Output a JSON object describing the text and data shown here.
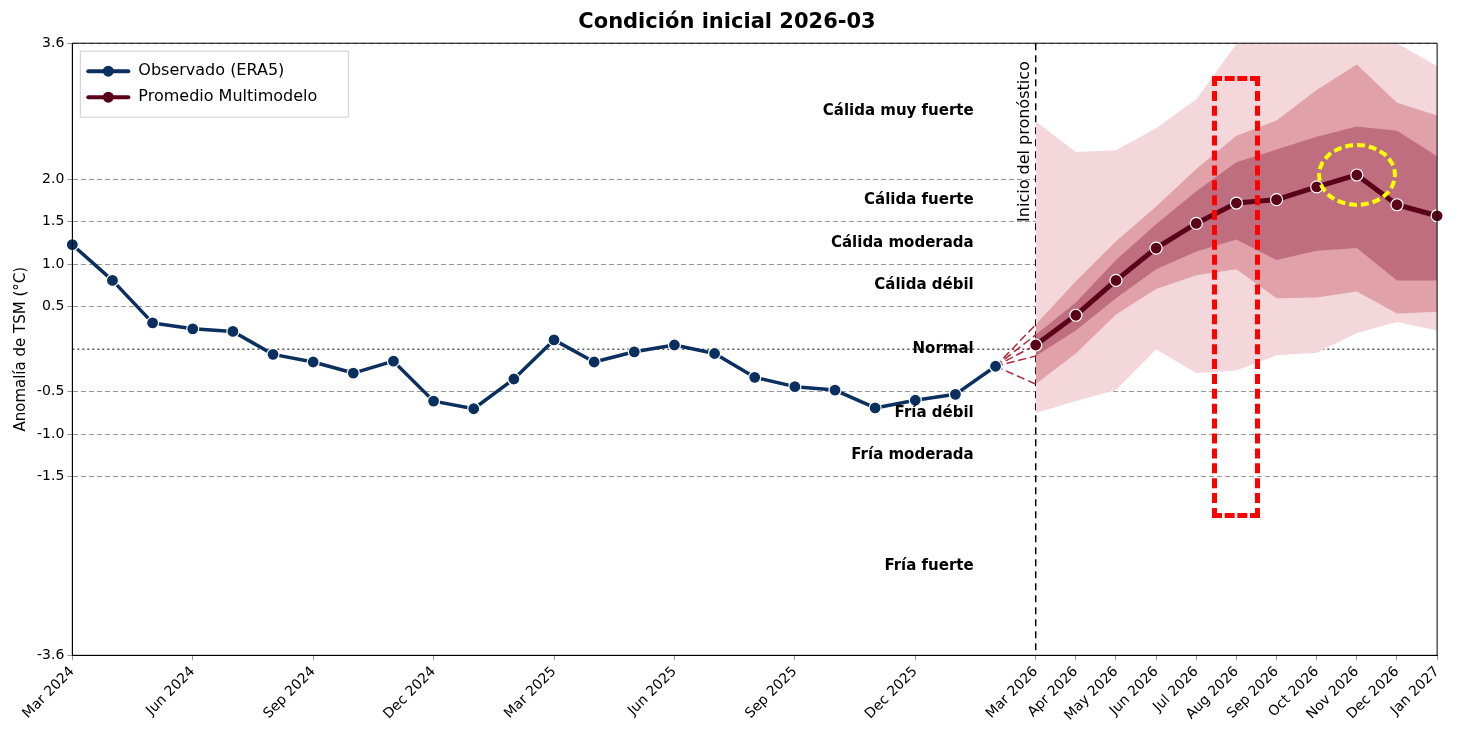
{
  "chart_data": {
    "type": "line",
    "title": "Condición inicial 2026-03",
    "ylabel": "Anomalía de TSM (°C)",
    "categories": [
      "Mar 2024",
      null,
      null,
      "Jun 2024",
      null,
      null,
      "Sep 2024",
      null,
      null,
      "Dec 2024",
      null,
      null,
      "Mar 2025",
      null,
      null,
      "Jun 2025",
      null,
      null,
      "Sep 2025",
      null,
      null,
      "Dec 2025",
      null,
      null,
      "Mar 2026",
      "Apr 2026",
      "May 2026",
      "Jun 2026",
      "Jul 2026",
      "Aug 2026",
      "Sep 2026",
      "Oct 2026",
      "Nov 2026",
      "Dec 2026",
      "Jan 2027"
    ],
    "ylim": [
      -3.6,
      3.6
    ],
    "yticks": [
      -3.6,
      -1.5,
      {
        "value": -1,
        "label": "-1.0"
      },
      -0.5,
      0.5,
      {
        "value": 1,
        "label": "1.0"
      },
      1.5,
      {
        "value": 2,
        "label": "2.0"
      },
      3.6
    ],
    "grid": "y",
    "legend": "top left",
    "marker": "circle",
    "ref_lines": [
      {
        "axis": "y",
        "value": 0,
        "line_style": "dotted",
        "color": "#555555"
      },
      {
        "axis": "x",
        "value": "Mar 2026",
        "label": "Inicio del pronóstico",
        "line_style": "dashed",
        "color": "#000000"
      }
    ],
    "annotations": [
      "Cálida muy fuerte",
      "Cálida fuerte",
      "Cálida moderada",
      "Cálida débil",
      "Normal",
      "Fría débil",
      "Fría moderada",
      "Fría fuerte"
    ],
    "series": [
      {
        "color": "#f3d7db",
        "values": [
          null,
          null,
          null,
          null,
          null,
          null,
          null,
          null,
          null,
          null,
          null,
          null,
          null,
          null,
          null,
          null,
          null,
          null,
          null,
          null,
          null,
          null,
          null,
          null,
          null,
          null,
          null,
          null,
          null,
          null,
          null,
          null,
          null,
          null,
          null
        ],
        "lower": [
          null,
          null,
          null,
          null,
          null,
          null,
          null,
          null,
          null,
          null,
          null,
          null,
          null,
          null,
          null,
          null,
          null,
          null,
          null,
          null,
          null,
          null,
          null,
          null,
          -0.75,
          -0.61,
          -0.48,
          0.0,
          -0.28,
          -0.25,
          -0.07,
          -0.04,
          0.19,
          0.32,
          0.22
        ],
        "upper": [
          null,
          null,
          null,
          null,
          null,
          null,
          null,
          null,
          null,
          null,
          null,
          null,
          null,
          null,
          null,
          null,
          null,
          null,
          null,
          null,
          null,
          null,
          null,
          null,
          2.68,
          2.32,
          2.34,
          2.6,
          2.94,
          3.59,
          3.6,
          3.6,
          3.6,
          3.6,
          3.33
        ]
      },
      {
        "color": "#e0a1a9",
        "values": [
          null,
          null,
          null,
          null,
          null,
          null,
          null,
          null,
          null,
          null,
          null,
          null,
          null,
          null,
          null,
          null,
          null,
          null,
          null,
          null,
          null,
          null,
          null,
          null,
          null,
          null,
          null,
          null,
          null,
          null,
          null,
          null,
          null,
          null,
          null
        ],
        "lower": [
          null,
          null,
          null,
          null,
          null,
          null,
          null,
          null,
          null,
          null,
          null,
          null,
          null,
          null,
          null,
          null,
          null,
          null,
          null,
          null,
          null,
          null,
          null,
          null,
          -0.41,
          -0.05,
          0.41,
          0.71,
          0.87,
          0.94,
          0.6,
          0.61,
          0.68,
          0.42,
          0.44
        ],
        "upper": [
          null,
          null,
          null,
          null,
          null,
          null,
          null,
          null,
          null,
          null,
          null,
          null,
          null,
          null,
          null,
          null,
          null,
          null,
          null,
          null,
          null,
          null,
          null,
          null,
          0.29,
          0.8,
          1.27,
          1.68,
          2.12,
          2.51,
          2.69,
          3.05,
          3.35,
          2.9,
          2.75
        ]
      },
      {
        "color": "#bf6e80",
        "values": [
          null,
          null,
          null,
          null,
          null,
          null,
          null,
          null,
          null,
          null,
          null,
          null,
          null,
          null,
          null,
          null,
          null,
          null,
          null,
          null,
          null,
          null,
          null,
          null,
          null,
          null,
          null,
          null,
          null,
          null,
          null,
          null,
          null,
          null,
          null
        ],
        "lower": [
          null,
          null,
          null,
          null,
          null,
          null,
          null,
          null,
          null,
          null,
          null,
          null,
          null,
          null,
          null,
          null,
          null,
          null,
          null,
          null,
          null,
          null,
          null,
          null,
          -0.08,
          0.22,
          0.6,
          0.94,
          1.15,
          1.29,
          1.05,
          1.16,
          1.19,
          0.81,
          0.81
        ],
        "upper": [
          null,
          null,
          null,
          null,
          null,
          null,
          null,
          null,
          null,
          null,
          null,
          null,
          null,
          null,
          null,
          null,
          null,
          null,
          null,
          null,
          null,
          null,
          null,
          null,
          0.17,
          0.55,
          1.05,
          1.47,
          1.86,
          2.2,
          2.35,
          2.5,
          2.62,
          2.57,
          2.27
        ]
      },
      {
        "color": "#b0283c",
        "marker": "none",
        "line_style": "dashed",
        "values": [
          null,
          null,
          null,
          null,
          null,
          null,
          null,
          null,
          null,
          null,
          null,
          null,
          null,
          null,
          null,
          null,
          null,
          null,
          null,
          null,
          null,
          null,
          null,
          -0.2,
          0.29,
          null,
          null,
          null,
          null,
          null,
          null,
          null,
          null,
          null,
          null
        ]
      },
      {
        "color": "#b0283c",
        "marker": "none",
        "line_style": "dashed",
        "values": [
          null,
          null,
          null,
          null,
          null,
          null,
          null,
          null,
          null,
          null,
          null,
          null,
          null,
          null,
          null,
          null,
          null,
          null,
          null,
          null,
          null,
          null,
          null,
          -0.2,
          0.17,
          null,
          null,
          null,
          null,
          null,
          null,
          null,
          null,
          null,
          null
        ]
      },
      {
        "color": "#b0283c",
        "marker": "none",
        "line_style": "dashed",
        "values": [
          null,
          null,
          null,
          null,
          null,
          null,
          null,
          null,
          null,
          null,
          null,
          null,
          null,
          null,
          null,
          null,
          null,
          null,
          null,
          null,
          null,
          null,
          null,
          -0.2,
          0.05,
          null,
          null,
          null,
          null,
          null,
          null,
          null,
          null,
          null,
          null
        ]
      },
      {
        "color": "#b0283c",
        "marker": "none",
        "line_style": "dashed",
        "values": [
          null,
          null,
          null,
          null,
          null,
          null,
          null,
          null,
          null,
          null,
          null,
          null,
          null,
          null,
          null,
          null,
          null,
          null,
          null,
          null,
          null,
          null,
          null,
          -0.2,
          -0.08,
          null,
          null,
          null,
          null,
          null,
          null,
          null,
          null,
          null,
          null
        ]
      },
      {
        "color": "#b0283c",
        "marker": "none",
        "line_style": "dashed",
        "values": [
          null,
          null,
          null,
          null,
          null,
          null,
          null,
          null,
          null,
          null,
          null,
          null,
          null,
          null,
          null,
          null,
          null,
          null,
          null,
          null,
          null,
          null,
          null,
          -0.2,
          -0.41,
          null,
          null,
          null,
          null,
          null,
          null,
          null,
          null,
          null,
          null
        ]
      },
      {
        "name": "Observado (ERA5)",
        "color": "#0b2f5e",
        "values": [
          1.23,
          0.81,
          0.31,
          0.24,
          0.21,
          -0.06,
          -0.15,
          -0.28,
          -0.14,
          -0.61,
          -0.7,
          -0.35,
          0.11,
          -0.15,
          -0.03,
          0.05,
          -0.05,
          -0.33,
          -0.44,
          -0.48,
          -0.69,
          -0.6,
          -0.53,
          -0.2,
          null,
          null,
          null,
          null,
          null,
          null,
          null,
          null,
          null,
          null,
          null
        ]
      },
      {
        "name": "Promedio Multimodelo",
        "color": "#5a0018",
        "values": [
          null,
          null,
          null,
          null,
          null,
          null,
          null,
          null,
          null,
          null,
          null,
          null,
          null,
          null,
          null,
          null,
          null,
          null,
          null,
          null,
          null,
          null,
          null,
          null,
          0.05,
          0.4,
          0.81,
          1.19,
          1.48,
          1.72,
          1.76,
          1.91,
          2.05,
          1.7,
          1.57
        ]
      }
    ]
  }
}
